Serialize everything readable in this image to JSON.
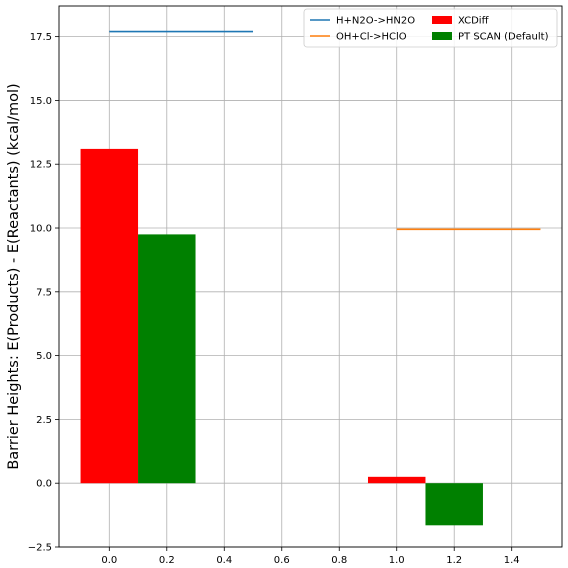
{
  "chart_data": {
    "type": "bar",
    "title": "",
    "xlabel": "",
    "ylabel": "Barrier Heights: E(Products) - E(Reactants) (kcal/mol)",
    "xlim": [
      -0.175,
      1.575
    ],
    "ylim": [
      -2.5,
      18.7
    ],
    "xticks": [
      0.0,
      0.2,
      0.4,
      0.6,
      0.8,
      1.0,
      1.2,
      1.4
    ],
    "xtick_labels": [
      "0.0",
      "0.2",
      "0.4",
      "0.6",
      "0.8",
      "1.0",
      "1.2",
      "1.4"
    ],
    "yticks": [
      -2.5,
      0.0,
      2.5,
      5.0,
      7.5,
      10.0,
      12.5,
      15.0,
      17.5
    ],
    "ytick_labels": [
      "−2.5",
      "0.0",
      "2.5",
      "5.0",
      "7.5",
      "10.0",
      "12.5",
      "15.0",
      "17.5"
    ],
    "grid": true,
    "legend_position": "top-right",
    "legend_columns": 2,
    "lines": [
      {
        "name": "H+N2O->HN2O",
        "color": "#1f77b4",
        "x": [
          0.0,
          0.5
        ],
        "y": [
          17.7,
          17.7
        ]
      },
      {
        "name": "OH+Cl->HClO",
        "color": "#ff7f0e",
        "x": [
          1.0,
          1.5
        ],
        "y": [
          9.95,
          9.95
        ]
      }
    ],
    "bar_series": [
      {
        "name": "XCDiff",
        "color": "#ff0000",
        "x": [
          0.0,
          1.0
        ],
        "values": [
          13.1,
          0.25
        ],
        "width": 0.2
      },
      {
        "name": "PT SCAN (Default)",
        "color": "#008000",
        "x": [
          0.2,
          1.2
        ],
        "values": [
          9.75,
          -1.65
        ],
        "width": 0.2
      }
    ]
  }
}
